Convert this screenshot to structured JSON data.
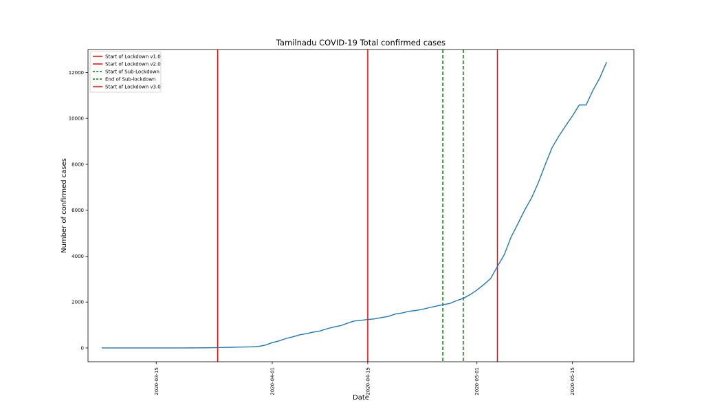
{
  "chart_data": {
    "type": "line",
    "title": "Tamilnadu COVID-19 Total confirmed cases",
    "xlabel": "Date",
    "ylabel": "Number of confirmed cases",
    "xlim": [
      "2020-03-05",
      "2020-05-24"
    ],
    "ylim": [
      -600,
      13000
    ],
    "x_ticks": [
      "2020-03-15",
      "2020-04-01",
      "2020-04-15",
      "2020-05-01",
      "2020-05-15"
    ],
    "y_ticks": [
      0,
      2000,
      4000,
      6000,
      8000,
      10000,
      12000
    ],
    "grid": false,
    "legend_position": "top-left",
    "series": [
      {
        "color": "#1f77b4",
        "x": [
          "2020-03-07",
          "2020-03-08",
          "2020-03-09",
          "2020-03-10",
          "2020-03-11",
          "2020-03-12",
          "2020-03-13",
          "2020-03-14",
          "2020-03-15",
          "2020-03-16",
          "2020-03-17",
          "2020-03-18",
          "2020-03-19",
          "2020-03-20",
          "2020-03-21",
          "2020-03-22",
          "2020-03-23",
          "2020-03-24",
          "2020-03-25",
          "2020-03-26",
          "2020-03-27",
          "2020-03-28",
          "2020-03-29",
          "2020-03-30",
          "2020-03-31",
          "2020-04-01",
          "2020-04-02",
          "2020-04-03",
          "2020-04-04",
          "2020-04-05",
          "2020-04-06",
          "2020-04-07",
          "2020-04-08",
          "2020-04-09",
          "2020-04-10",
          "2020-04-11",
          "2020-04-12",
          "2020-04-13",
          "2020-04-14",
          "2020-04-15",
          "2020-04-16",
          "2020-04-17",
          "2020-04-18",
          "2020-04-19",
          "2020-04-20",
          "2020-04-21",
          "2020-04-22",
          "2020-04-23",
          "2020-04-24",
          "2020-04-25",
          "2020-04-26",
          "2020-04-27",
          "2020-04-28",
          "2020-04-29",
          "2020-04-30",
          "2020-05-01",
          "2020-05-02",
          "2020-05-03",
          "2020-05-04",
          "2020-05-05",
          "2020-05-06",
          "2020-05-07",
          "2020-05-08",
          "2020-05-09",
          "2020-05-10",
          "2020-05-11",
          "2020-05-12",
          "2020-05-13",
          "2020-05-14",
          "2020-05-15",
          "2020-05-16",
          "2020-05-17",
          "2020-05-18",
          "2020-05-19",
          "2020-05-20"
        ],
        "values": [
          1,
          1,
          1,
          1,
          1,
          1,
          1,
          1,
          1,
          1,
          1,
          2,
          2,
          3,
          6,
          7,
          9,
          15,
          23,
          29,
          40,
          42,
          50,
          67,
          124,
          234,
          309,
          411,
          485,
          571,
          621,
          690,
          738,
          834,
          911,
          969,
          1075,
          1173,
          1204,
          1242,
          1267,
          1323,
          1372,
          1477,
          1520,
          1596,
          1629,
          1683,
          1755,
          1821,
          1885,
          1937,
          2058,
          2162,
          2323,
          2526,
          2757,
          3023,
          3550,
          4058,
          4829,
          5409,
          6009,
          6535,
          7204,
          7979,
          8718,
          9227,
          9674,
          10108,
          10585,
          10585,
          11224,
          11760,
          12448
        ]
      }
    ],
    "vlines": [
      {
        "name": "Start of Lockdown v1.0",
        "x": "2020-03-24",
        "color": "#ff0000",
        "style": "solid"
      },
      {
        "name": "Start of Lockdown v2.0",
        "x": "2020-04-15",
        "color": "#ff0000",
        "style": "solid"
      },
      {
        "name": "Start of Sub-Lockdown",
        "x": "2020-04-26",
        "color": "#008000",
        "style": "dashed"
      },
      {
        "name": "End of Sub-lockdown",
        "x": "2020-04-29",
        "color": "#008000",
        "style": "dashed"
      },
      {
        "name": "Start of Lockdown v3.0",
        "x": "2020-05-04",
        "color": "#ff0000",
        "style": "solid"
      }
    ]
  }
}
